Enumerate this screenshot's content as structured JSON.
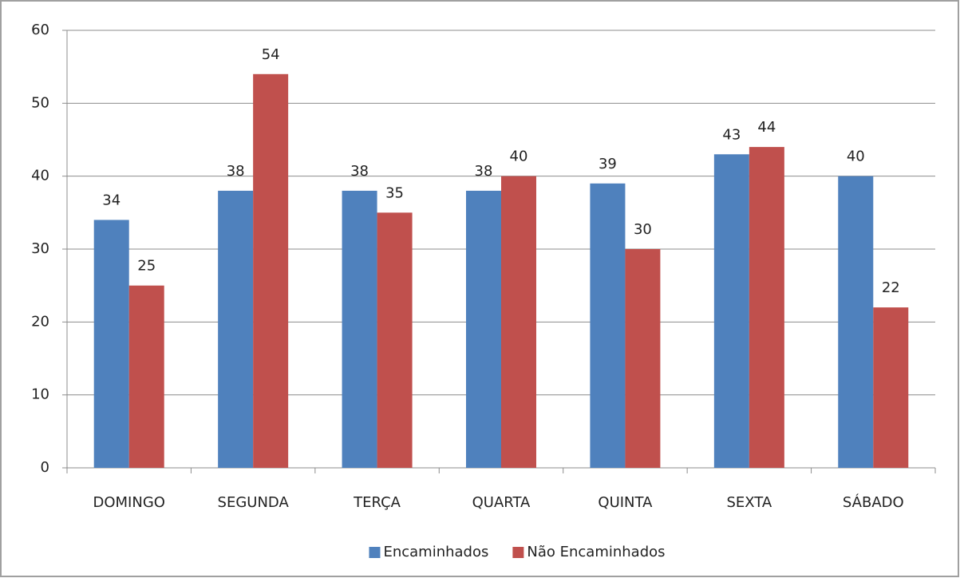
{
  "chart_data": {
    "type": "bar",
    "categories": [
      "DOMINGO",
      "SEGUNDA",
      "TERÇA",
      "QUARTA",
      "QUINTA",
      "SEXTA",
      "SÁBADO"
    ],
    "series": [
      {
        "name": "Encaminhados",
        "color": "#4f81bd",
        "values": [
          34,
          38,
          38,
          38,
          39,
          43,
          40
        ]
      },
      {
        "name": "Não Encaminhados",
        "color": "#c0504d",
        "values": [
          25,
          54,
          35,
          40,
          30,
          44,
          22
        ]
      }
    ],
    "ylim": [
      0,
      60
    ],
    "yticks": [
      0,
      10,
      20,
      30,
      40,
      50,
      60
    ],
    "grid": true,
    "legend": "bottom",
    "data_labels": true
  }
}
